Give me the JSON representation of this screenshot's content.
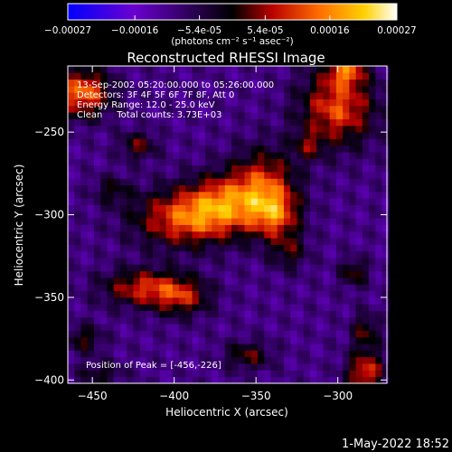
{
  "chart_data": {
    "type": "heatmap",
    "title": "Reconstructed RHESSI Image",
    "xlabel": "Heliocentric X (arcsec)",
    "ylabel": "Heliocentric Y (arcsec)",
    "xlim": [
      -465,
      -270
    ],
    "ylim": [
      -402,
      -210
    ],
    "x_ticks": [
      -450,
      -400,
      -350,
      -300
    ],
    "y_ticks": [
      -400,
      -350,
      -300,
      -250
    ],
    "colorbar": {
      "range": [
        -0.00027,
        0.00027
      ],
      "tick_values": [
        -0.00027,
        -0.00016,
        -5.4e-05,
        5.4e-05,
        0.00016,
        0.00027
      ],
      "tick_labels": [
        "-0.00027",
        "-0.00016",
        "-5.4e-05",
        "5.4e-05",
        "0.00016",
        "0.00027"
      ],
      "unit_label": "(photons cm⁻² s⁻¹ asec⁻²)",
      "colormap": [
        "#0000ff",
        "#6a00d0",
        "#000000",
        "#b80000",
        "#ff6a00",
        "#ffd000",
        "#ffffff"
      ]
    },
    "annotations": [
      "13-Sep-2002 05:20:00.000 to 05:26:00.000",
      "Detectors: 3F 4F 5F 6F 7F 8F, Att 0",
      "Energy Range: 12.0 - 25.0 keV",
      "Clean     Total counts: 3.73E+03"
    ],
    "peak_label": "Position of Peak = [-456,-226]",
    "peak": [
      -456,
      -226
    ],
    "sources": [
      {
        "x": -393,
        "y": -302,
        "sx": 22,
        "sy": 12,
        "amp": 0.000215
      },
      {
        "x": -370,
        "y": -292,
        "sx": 16,
        "sy": 12,
        "amp": 0.00017
      },
      {
        "x": -345,
        "y": -283,
        "sx": 14,
        "sy": 16,
        "amp": 0.00019
      },
      {
        "x": -338,
        "y": -300,
        "sx": 10,
        "sy": 10,
        "amp": 0.00016
      },
      {
        "x": -418,
        "y": -344,
        "sx": 18,
        "sy": 8,
        "amp": 0.00018
      },
      {
        "x": -395,
        "y": -350,
        "sx": 12,
        "sy": 8,
        "amp": 0.00014
      },
      {
        "x": -456,
        "y": -226,
        "sx": 12,
        "sy": 10,
        "amp": 0.00024
      },
      {
        "x": -300,
        "y": -235,
        "sx": 16,
        "sy": 16,
        "amp": 0.00021
      },
      {
        "x": -295,
        "y": -213,
        "sx": 8,
        "sy": 6,
        "amp": 0.00018
      },
      {
        "x": -422,
        "y": -258,
        "sx": 8,
        "sy": 6,
        "amp": 0.00012
      },
      {
        "x": -290,
        "y": -335,
        "sx": 6,
        "sy": 6,
        "amp": 0.00012
      },
      {
        "x": -438,
        "y": -285,
        "sx": 8,
        "sy": 6,
        "amp": 9e-05
      },
      {
        "x": -330,
        "y": -322,
        "sx": 8,
        "sy": 8,
        "amp": 0.0001
      },
      {
        "x": -283,
        "y": -395,
        "sx": 8,
        "sy": 8,
        "amp": 0.0002
      },
      {
        "x": -283,
        "y": -371,
        "sx": 6,
        "sy": 8,
        "amp": 0.00012
      },
      {
        "x": -455,
        "y": -375,
        "sx": 8,
        "sy": 6,
        "amp": 0.00011
      },
      {
        "x": -445,
        "y": -396,
        "sx": 10,
        "sy": 5,
        "amp": 9e-05
      },
      {
        "x": -355,
        "y": -385,
        "sx": 10,
        "sy": 6,
        "amp": 0.00012
      },
      {
        "x": -318,
        "y": -258,
        "sx": 6,
        "sy": 6,
        "amp": 0.0001
      }
    ]
  },
  "timestamp": "1-May-2022 18:52"
}
